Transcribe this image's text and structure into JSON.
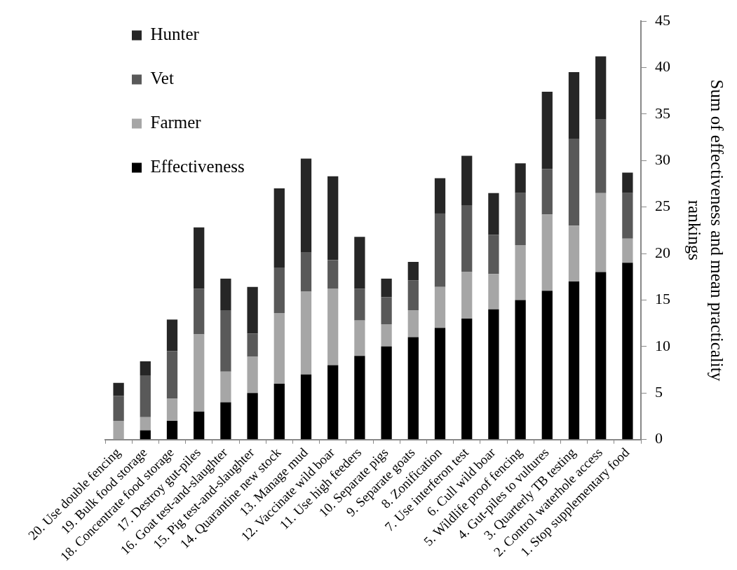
{
  "chart_data": {
    "type": "bar",
    "stacked": true,
    "ylabel": "Sum of effectiveness and mean practicality rankings",
    "categories": [
      "20. Use double fencing",
      "19. Bulk food storage",
      "18. Concentrate food storage",
      "17. Destroy gut-piles",
      "16. Goat test-and-slaughter",
      "15. Pig test-and-slaughter",
      "14. Quarantine new stock",
      "13. Manage mud",
      "12. Vaccinate wild boar",
      "11. Use high feeders",
      "10. Separate pigs",
      "9. Separate goats",
      "8. Zonification",
      "7. Use interferon test",
      "6. Cull wild boar",
      "5. Wildlife proof fencing",
      "4. Gut-piles to vultures",
      "3. Quarterly TB testing",
      "2. Control waterhole access",
      "1. Stop supplementary food"
    ],
    "series": [
      {
        "name": "Effectiveness",
        "color": "#000000",
        "values": [
          0,
          1,
          2,
          3,
          4,
          5,
          6,
          7,
          8,
          9,
          10,
          11,
          12,
          13,
          14,
          15,
          16,
          17,
          18,
          19
        ]
      },
      {
        "name": "Farmer",
        "color": "#a6a6a6",
        "values": [
          2.0,
          1.4,
          2.4,
          8.3,
          3.3,
          3.9,
          7.6,
          8.9,
          8.2,
          3.8,
          2.4,
          2.9,
          4.4,
          5.0,
          3.8,
          5.9,
          8.2,
          6.0,
          8.5,
          2.6
        ]
      },
      {
        "name": "Vet",
        "color": "#595959",
        "values": [
          2.7,
          4.5,
          5.1,
          4.9,
          6.6,
          2.5,
          4.9,
          4.2,
          3.1,
          3.4,
          2.9,
          3.2,
          7.9,
          7.2,
          4.2,
          5.6,
          4.9,
          9.3,
          7.9,
          4.9
        ]
      },
      {
        "name": "Hunter",
        "color": "#262626",
        "values": [
          1.4,
          1.5,
          3.4,
          6.6,
          3.4,
          5.0,
          8.5,
          10.1,
          9.0,
          5.6,
          2.0,
          2.0,
          3.8,
          5.3,
          4.5,
          3.2,
          8.3,
          7.2,
          6.8,
          2.2
        ]
      }
    ],
    "ylim": [
      0,
      45
    ],
    "yticks": [
      0,
      5,
      10,
      15,
      20,
      25,
      30,
      35,
      40,
      45
    ],
    "grid": false,
    "legend": "top left"
  }
}
